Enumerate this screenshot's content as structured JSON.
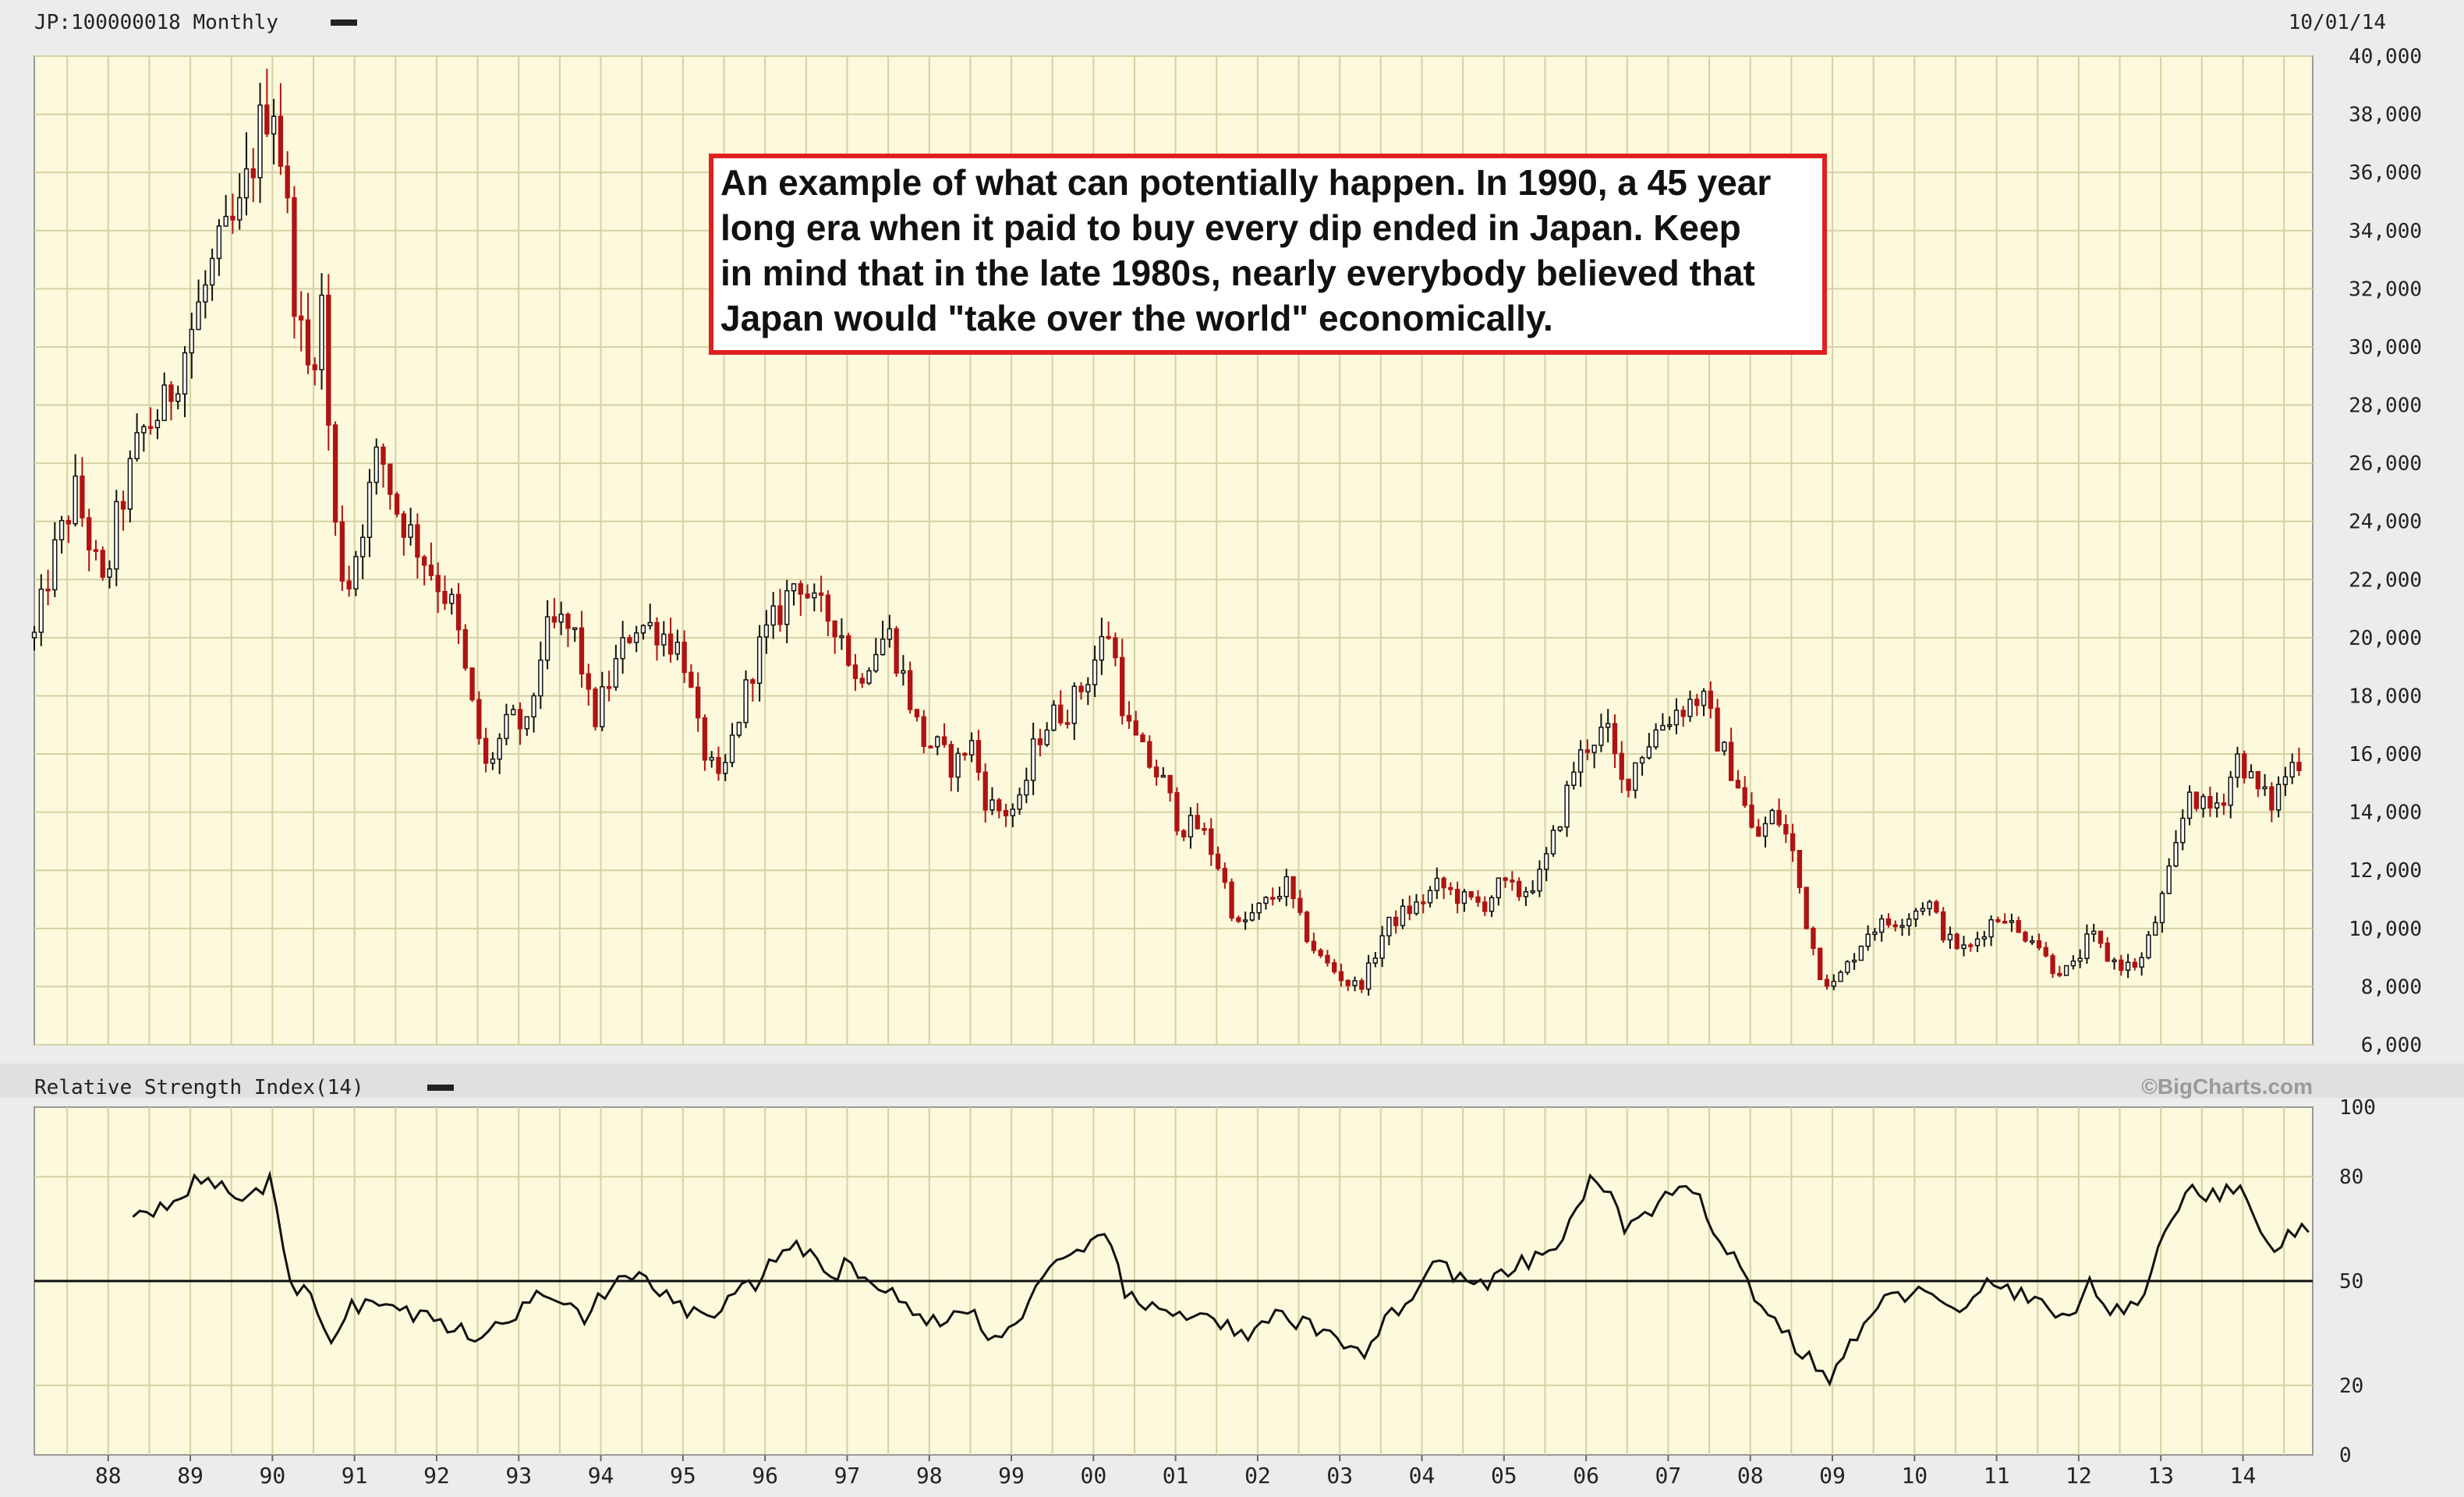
{
  "header": {
    "symbol_label": "JP:100000018 Monthly",
    "date": "10/01/14"
  },
  "rsi_panel": {
    "label": "Relative Strength Index(14)",
    "credit": "©BigCharts.com"
  },
  "colors": {
    "background": "#ececec",
    "plot_bg": "#fcf9dc",
    "grid": "#d5d1a6",
    "up_candle": "#111111",
    "down_candle": "#b01313",
    "annotation_border": "#e02020"
  },
  "chart_data": [
    {
      "type": "candlestick",
      "title": "JP:100000018 Monthly",
      "x_ticks": [
        "88",
        "89",
        "90",
        "91",
        "92",
        "93",
        "94",
        "95",
        "96",
        "97",
        "98",
        "99",
        "00",
        "01",
        "02",
        "03",
        "04",
        "05",
        "06",
        "07",
        "08",
        "09",
        "10",
        "11",
        "12",
        "13",
        "14"
      ],
      "y_ticks": [
        "6,000",
        "8,000",
        "10,000",
        "12,000",
        "14,000",
        "16,000",
        "18,000",
        "20,000",
        "22,000",
        "24,000",
        "26,000",
        "28,000",
        "30,000",
        "32,000",
        "34,000",
        "36,000",
        "38,000",
        "40,000"
      ],
      "ylim": [
        6000,
        40000
      ],
      "xlim": [
        1987.1,
        2014.85
      ],
      "grid": true,
      "date_printed": "10/01/14",
      "close_anchors": [
        [
          1987.1,
          20000
        ],
        [
          1987.3,
          22500
        ],
        [
          1987.6,
          25000
        ],
        [
          1987.8,
          23000
        ],
        [
          1987.95,
          21500
        ],
        [
          1988.1,
          24000
        ],
        [
          1988.4,
          27000
        ],
        [
          1988.7,
          28000
        ],
        [
          1989.0,
          30500
        ],
        [
          1989.3,
          33000
        ],
        [
          1989.6,
          34500
        ],
        [
          1989.85,
          37500
        ],
        [
          1990.0,
          38900
        ],
        [
          1990.15,
          35500
        ],
        [
          1990.3,
          31000
        ],
        [
          1990.45,
          29000
        ],
        [
          1990.6,
          31500
        ],
        [
          1990.75,
          24000
        ],
        [
          1990.9,
          21500
        ],
        [
          1991.1,
          24000
        ],
        [
          1991.3,
          26500
        ],
        [
          1991.5,
          24500
        ],
        [
          1991.8,
          23000
        ],
        [
          1992.0,
          22000
        ],
        [
          1992.2,
          21000
        ],
        [
          1992.4,
          18000
        ],
        [
          1992.6,
          15500
        ],
        [
          1992.9,
          17200
        ],
        [
          1993.1,
          16800
        ],
        [
          1993.3,
          20000
        ],
        [
          1993.5,
          20500
        ],
        [
          1993.7,
          20000
        ],
        [
          1993.9,
          17000
        ],
        [
          1994.1,
          18500
        ],
        [
          1994.4,
          20500
        ],
        [
          1994.7,
          20300
        ],
        [
          1995.0,
          19500
        ],
        [
          1995.2,
          16500
        ],
        [
          1995.45,
          14800
        ],
        [
          1995.65,
          17000
        ],
        [
          1995.9,
          19500
        ],
        [
          1996.2,
          21000
        ],
        [
          1996.4,
          22200
        ],
        [
          1996.6,
          21000
        ],
        [
          1996.9,
          20500
        ],
        [
          1997.1,
          18500
        ],
        [
          1997.3,
          19500
        ],
        [
          1997.5,
          20200
        ],
        [
          1997.7,
          18500
        ],
        [
          1997.9,
          16500
        ],
        [
          1998.1,
          16200
        ],
        [
          1998.3,
          15500
        ],
        [
          1998.5,
          16500
        ],
        [
          1998.7,
          14300
        ],
        [
          1998.9,
          14000
        ],
        [
          1999.1,
          14200
        ],
        [
          1999.3,
          16500
        ],
        [
          1999.5,
          17300
        ],
        [
          1999.7,
          17600
        ],
        [
          1999.9,
          18500
        ],
        [
          2000.1,
          19800
        ],
        [
          2000.2,
          20300
        ],
        [
          2000.4,
          17000
        ],
        [
          2000.6,
          16000
        ],
        [
          2000.85,
          15000
        ],
        [
          2001.05,
          13500
        ],
        [
          2001.3,
          13500
        ],
        [
          2001.55,
          12000
        ],
        [
          2001.75,
          10000
        ],
        [
          2001.95,
          10500
        ],
        [
          2002.15,
          11000
        ],
        [
          2002.35,
          11500
        ],
        [
          2002.55,
          10000
        ],
        [
          2002.75,
          9000
        ],
        [
          2002.95,
          8500
        ],
        [
          2003.15,
          8000
        ],
        [
          2003.3,
          8200
        ],
        [
          2003.55,
          10000
        ],
        [
          2003.75,
          10500
        ],
        [
          2003.95,
          10800
        ],
        [
          2004.2,
          11500
        ],
        [
          2004.5,
          11000
        ],
        [
          2004.75,
          10800
        ],
        [
          2004.95,
          11500
        ],
        [
          2005.2,
          11200
        ],
        [
          2005.45,
          11800
        ],
        [
          2005.65,
          13500
        ],
        [
          2005.85,
          15500
        ],
        [
          2006.05,
          16500
        ],
        [
          2006.25,
          16800
        ],
        [
          2006.45,
          14800
        ],
        [
          2006.65,
          16000
        ],
        [
          2006.9,
          17000
        ],
        [
          2007.1,
          17500
        ],
        [
          2007.4,
          18000
        ],
        [
          2007.6,
          16500
        ],
        [
          2007.85,
          15000
        ],
        [
          2008.05,
          13000
        ],
        [
          2008.3,
          14000
        ],
        [
          2008.5,
          12800
        ],
        [
          2008.7,
          10000
        ],
        [
          2008.85,
          8500
        ],
        [
          2009.0,
          8000
        ],
        [
          2009.2,
          8800
        ],
        [
          2009.45,
          10000
        ],
        [
          2009.7,
          10200
        ],
        [
          2009.95,
          10500
        ],
        [
          2010.15,
          11000
        ],
        [
          2010.4,
          9600
        ],
        [
          2010.65,
          9200
        ],
        [
          2010.9,
          10200
        ],
        [
          2011.1,
          10500
        ],
        [
          2011.25,
          9800
        ],
        [
          2011.45,
          9800
        ],
        [
          2011.65,
          8700
        ],
        [
          2011.9,
          8500
        ],
        [
          2012.15,
          9800
        ],
        [
          2012.35,
          9000
        ],
        [
          2012.55,
          8700
        ],
        [
          2012.75,
          8800
        ],
        [
          2012.95,
          10400
        ],
        [
          2013.15,
          12300
        ],
        [
          2013.35,
          14800
        ],
        [
          2013.55,
          14000
        ],
        [
          2013.75,
          14500
        ],
        [
          2013.95,
          16000
        ],
        [
          2014.15,
          14800
        ],
        [
          2014.35,
          14300
        ],
        [
          2014.55,
          15500
        ],
        [
          2014.75,
          16000
        ]
      ]
    },
    {
      "type": "line",
      "title": "Relative Strength Index(14)",
      "y_ticks": [
        "0",
        "20",
        "50",
        "80",
        "100"
      ],
      "ylim": [
        0,
        100
      ],
      "reference_line": 50,
      "xlim": [
        1987.1,
        2014.85
      ],
      "rsi_anchors": [
        [
          1988.3,
          70
        ],
        [
          1988.6,
          71
        ],
        [
          1988.9,
          76
        ],
        [
          1989.2,
          80
        ],
        [
          1989.5,
          74
        ],
        [
          1989.8,
          76
        ],
        [
          1990.0,
          79
        ],
        [
          1990.2,
          48
        ],
        [
          1990.5,
          46
        ],
        [
          1990.7,
          32
        ],
        [
          1990.9,
          42
        ],
        [
          1991.2,
          44
        ],
        [
          1991.5,
          42
        ],
        [
          1991.8,
          40
        ],
        [
          1992.1,
          38
        ],
        [
          1992.4,
          34
        ],
        [
          1992.7,
          36
        ],
        [
          1992.9,
          38
        ],
        [
          1993.2,
          48
        ],
        [
          1993.5,
          46
        ],
        [
          1993.8,
          40
        ],
        [
          1994.1,
          48
        ],
        [
          1994.4,
          51
        ],
        [
          1994.7,
          48
        ],
        [
          1995.0,
          42
        ],
        [
          1995.3,
          39
        ],
        [
          1995.6,
          45
        ],
        [
          1995.9,
          50
        ],
        [
          1996.2,
          58
        ],
        [
          1996.4,
          62
        ],
        [
          1996.6,
          55
        ],
        [
          1996.8,
          50
        ],
        [
          1997.0,
          56
        ],
        [
          1997.3,
          50
        ],
        [
          1997.6,
          45
        ],
        [
          1997.9,
          40
        ],
        [
          1998.2,
          38
        ],
        [
          1998.5,
          42
        ],
        [
          1998.8,
          33
        ],
        [
          1999.0,
          36
        ],
        [
          1999.3,
          48
        ],
        [
          1999.6,
          55
        ],
        [
          1999.9,
          58
        ],
        [
          2000.2,
          64
        ],
        [
          2000.4,
          45
        ],
        [
          2000.7,
          42
        ],
        [
          2001.0,
          40
        ],
        [
          2001.3,
          42
        ],
        [
          2001.6,
          37
        ],
        [
          2001.9,
          33
        ],
        [
          2002.2,
          40
        ],
        [
          2002.5,
          38
        ],
        [
          2002.8,
          35
        ],
        [
          2003.0,
          33
        ],
        [
          2003.3,
          30
        ],
        [
          2003.6,
          40
        ],
        [
          2003.9,
          46
        ],
        [
          2004.2,
          56
        ],
        [
          2004.5,
          50
        ],
        [
          2004.8,
          48
        ],
        [
          2005.1,
          54
        ],
        [
          2005.4,
          56
        ],
        [
          2005.7,
          62
        ],
        [
          2005.95,
          74
        ],
        [
          2006.1,
          80
        ],
        [
          2006.3,
          74
        ],
        [
          2006.45,
          66
        ],
        [
          2006.7,
          68
        ],
        [
          2007.0,
          74
        ],
        [
          2007.3,
          76
        ],
        [
          2007.6,
          64
        ],
        [
          2007.9,
          54
        ],
        [
          2008.1,
          42
        ],
        [
          2008.35,
          38
        ],
        [
          2008.6,
          30
        ],
        [
          2008.85,
          24
        ],
        [
          2009.0,
          22
        ],
        [
          2009.3,
          35
        ],
        [
          2009.6,
          44
        ],
        [
          2009.9,
          46
        ],
        [
          2010.1,
          50
        ],
        [
          2010.35,
          42
        ],
        [
          2010.6,
          40
        ],
        [
          2010.9,
          50
        ],
        [
          2011.15,
          48
        ],
        [
          2011.4,
          44
        ],
        [
          2011.7,
          42
        ],
        [
          2011.95,
          40
        ],
        [
          2012.15,
          50
        ],
        [
          2012.35,
          42
        ],
        [
          2012.55,
          40
        ],
        [
          2012.75,
          44
        ],
        [
          2012.95,
          58
        ],
        [
          2013.15,
          70
        ],
        [
          2013.35,
          78
        ],
        [
          2013.6,
          74
        ],
        [
          2013.85,
          76
        ],
        [
          2014.0,
          80
        ],
        [
          2014.2,
          62
        ],
        [
          2014.4,
          60
        ],
        [
          2014.6,
          64
        ],
        [
          2014.85,
          66
        ]
      ]
    }
  ],
  "annotation": {
    "lines": [
      "An example of what can potentially happen. In 1990, a 45 year",
      "long era when it paid to buy every dip ended in Japan. Keep",
      "in mind that in the late 1980s, nearly everybody believed that",
      "Japan would \"take over the world\" economically."
    ]
  }
}
